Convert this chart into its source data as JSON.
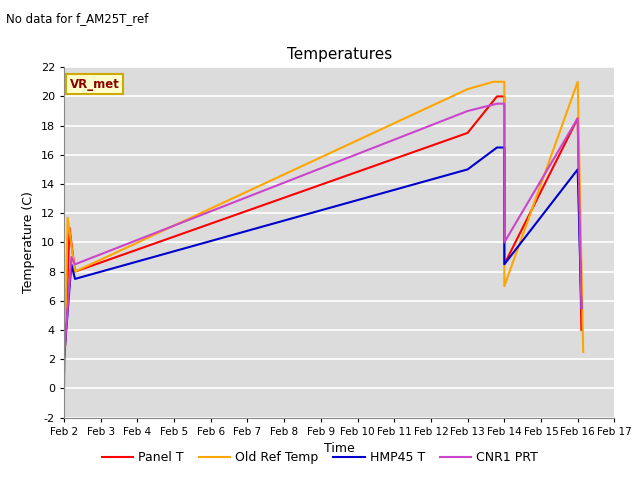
{
  "title": "Temperatures",
  "xlabel": "Time",
  "ylabel": "Temperature (C)",
  "annotation_text": "No data for f_AM25T_ref",
  "legend_label_text": "VR_met",
  "background_color": "#dcdcdc",
  "grid_color": "white",
  "ylim": [
    -2,
    22
  ],
  "xlim": [
    2,
    17
  ],
  "yticks": [
    -2,
    0,
    2,
    4,
    6,
    8,
    10,
    12,
    14,
    16,
    18,
    20,
    22
  ],
  "xtick_labels": [
    "Feb 2",
    "Feb 3",
    "Feb 4",
    "Feb 5",
    "Feb 6",
    "Feb 7",
    "Feb 8",
    "Feb 9",
    "Feb 10",
    "Feb 11",
    "Feb 12",
    "Feb 13",
    "Feb 14",
    "Feb 15",
    "Feb 16",
    "Feb 17"
  ],
  "xtick_positions": [
    2,
    3,
    4,
    5,
    6,
    7,
    8,
    9,
    10,
    11,
    12,
    13,
    14,
    15,
    16,
    17
  ],
  "series": {
    "Panel T": {
      "color": "#ff0000",
      "x": [
        2.0,
        2.15,
        2.3,
        13.0,
        13.8,
        14.0,
        14.0,
        16.0,
        16.1
      ],
      "y": [
        1.0,
        11.0,
        8.0,
        17.5,
        20.0,
        20.0,
        8.5,
        18.5,
        4.0
      ]
    },
    "Old Ref Temp": {
      "color": "#ffa500",
      "x": [
        2.0,
        2.1,
        2.3,
        13.0,
        13.7,
        14.0,
        14.0,
        16.0,
        16.15
      ],
      "y": [
        -0.5,
        11.7,
        8.0,
        20.5,
        21.0,
        21.0,
        7.0,
        21.0,
        2.5
      ]
    },
    "HMP45 T": {
      "color": "#0000cc",
      "x": [
        2.0,
        2.2,
        2.3,
        13.0,
        13.8,
        14.0,
        14.0,
        16.0,
        16.1
      ],
      "y": [
        2.0,
        8.5,
        7.5,
        15.0,
        16.5,
        16.5,
        8.5,
        15.0,
        5.5
      ]
    },
    "CNR1 PRT": {
      "color": "#cc44cc",
      "x": [
        2.0,
        2.2,
        2.3,
        13.0,
        13.8,
        14.0,
        14.0,
        16.0,
        16.1
      ],
      "y": [
        2.0,
        9.0,
        8.5,
        19.0,
        19.5,
        19.5,
        10.0,
        18.5,
        5.5
      ]
    }
  }
}
